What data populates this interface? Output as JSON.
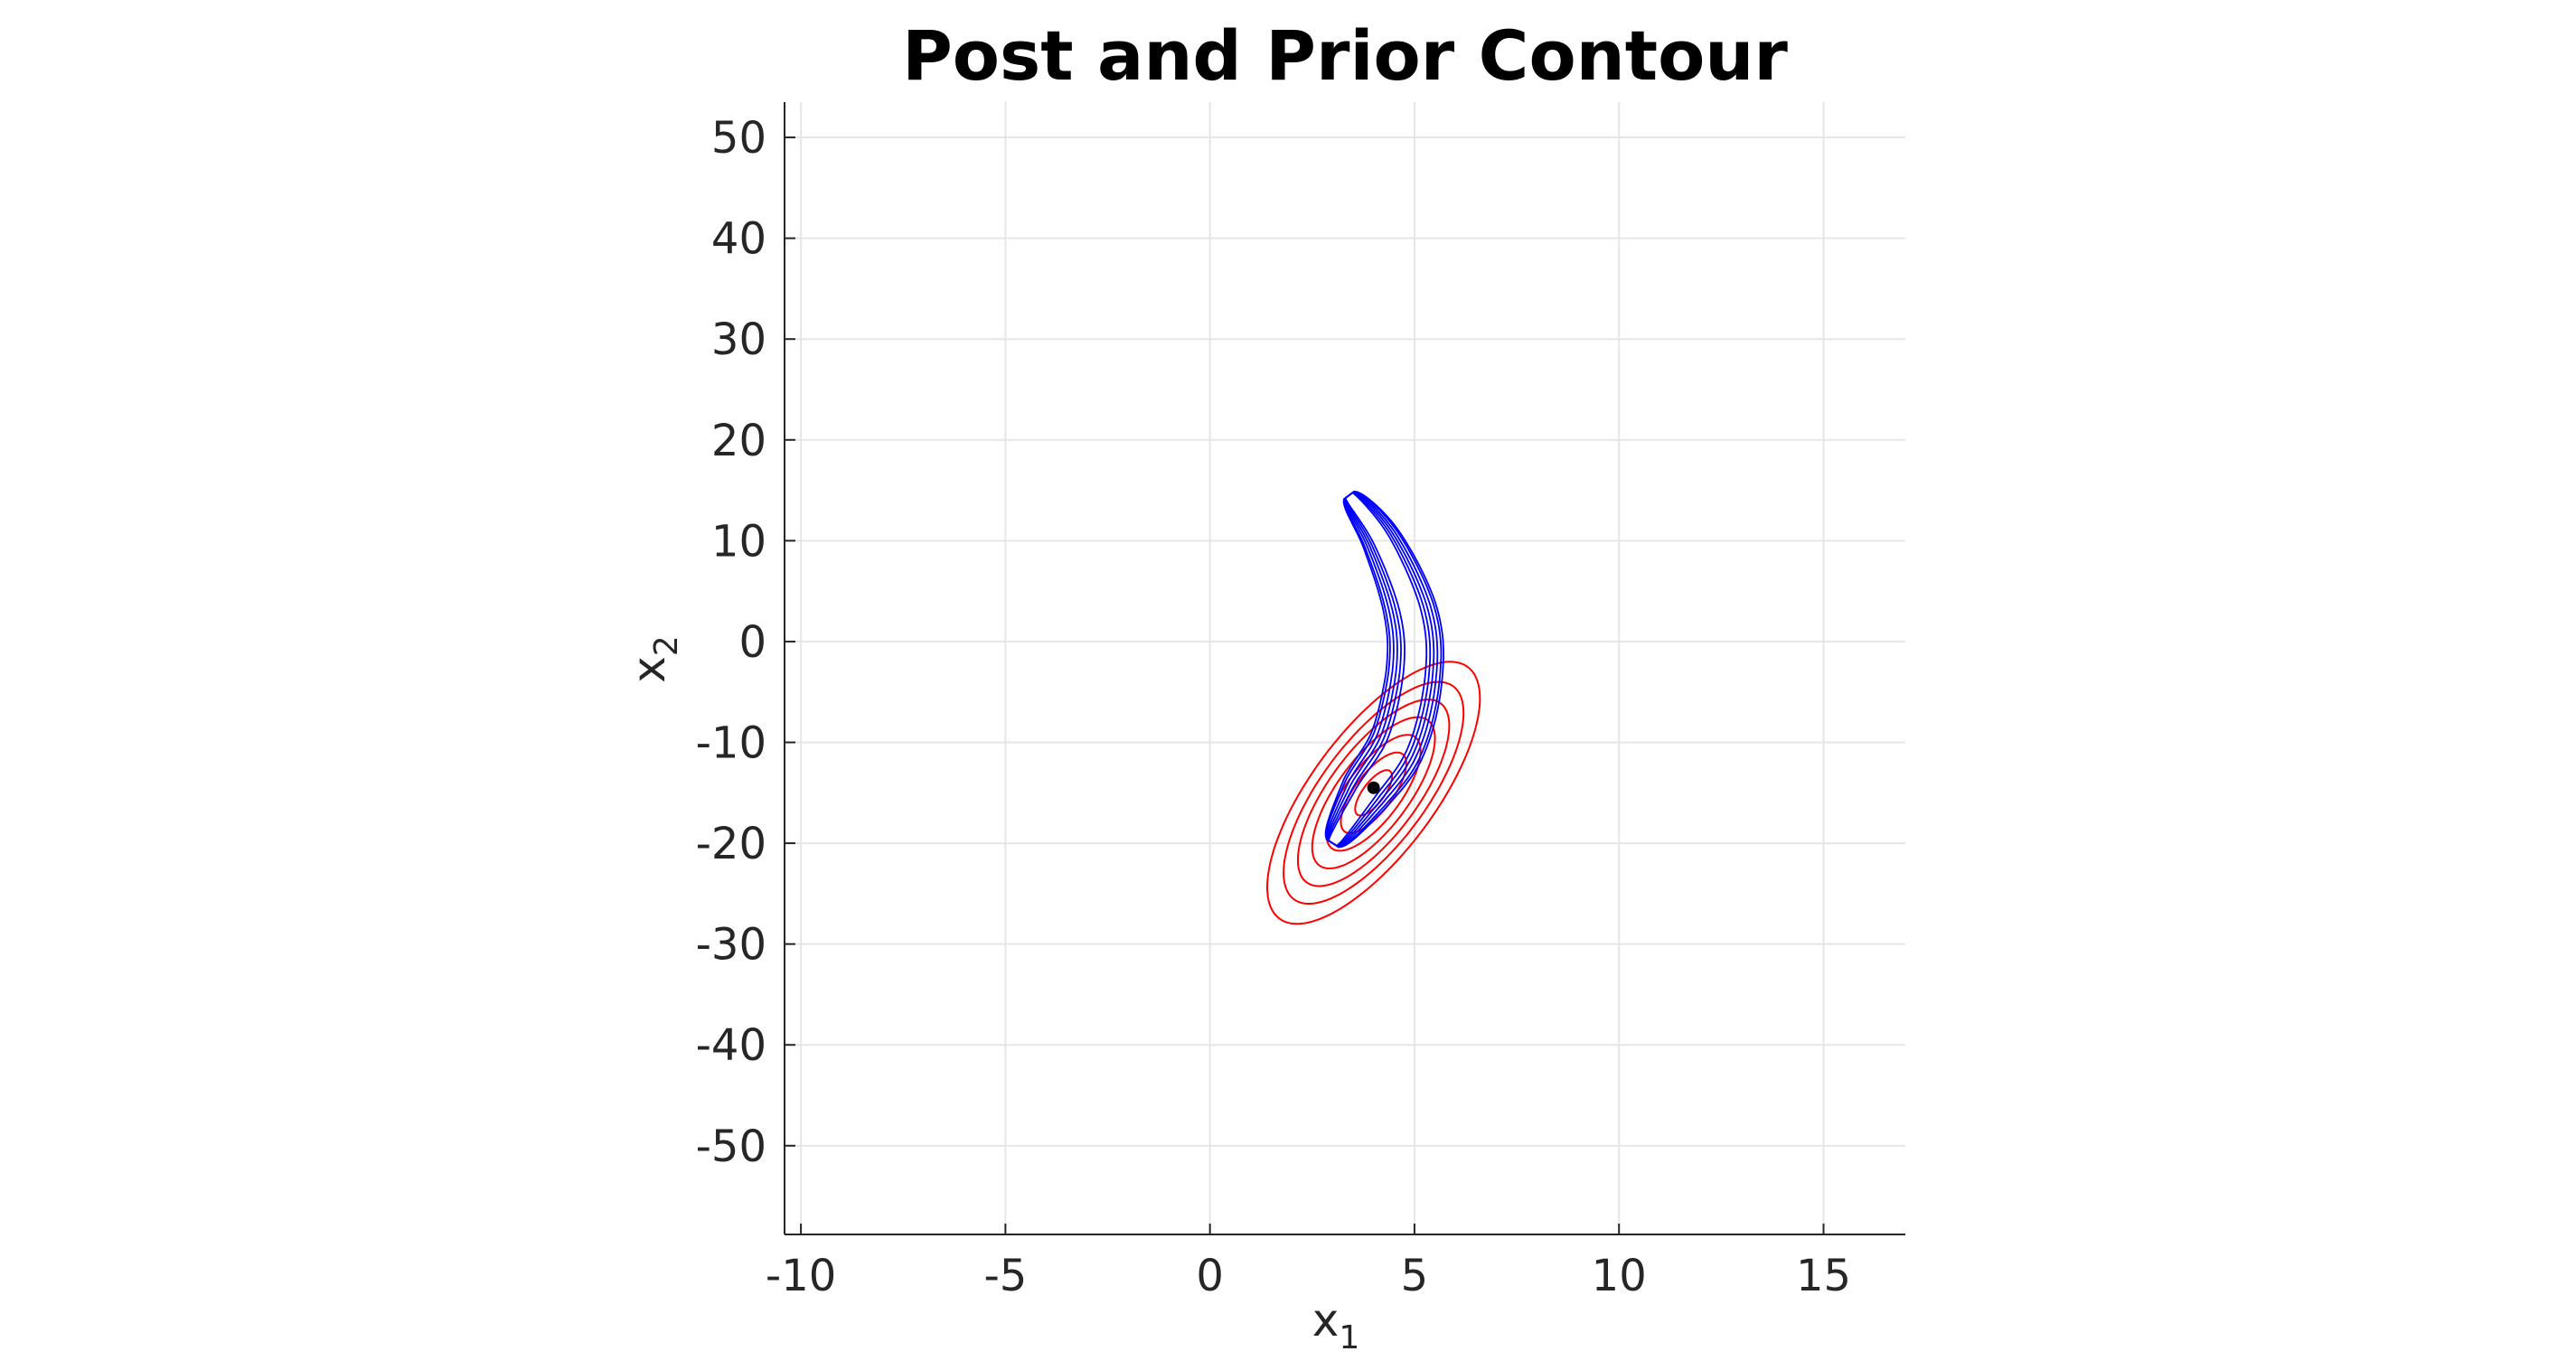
{
  "chart_data": {
    "type": "contour",
    "title": "Post and Prior Contour",
    "xlabel_base": "x",
    "xlabel_sub": "1",
    "ylabel_base": "x",
    "ylabel_sub": "2",
    "xlim": [
      -10.4,
      17
    ],
    "ylim": [
      -58.8,
      53.5
    ],
    "x_ticks": [
      -10,
      -5,
      0,
      5,
      10,
      15
    ],
    "x_tick_labels": [
      "-10",
      "-5",
      "0",
      "5",
      "10",
      "15"
    ],
    "y_ticks": [
      50,
      40,
      30,
      20,
      10,
      0,
      -10,
      -20,
      -30,
      -40,
      -50
    ],
    "y_tick_labels": [
      "50",
      "40",
      "30",
      "20",
      "10",
      "0",
      "-10",
      "-20",
      "-30",
      "-40",
      "-50"
    ],
    "grid": true,
    "colors": {
      "prior": "#ff0000",
      "posterior": "#0000ff",
      "point": "#000000"
    },
    "series": [
      {
        "role": "prior",
        "color": "#ff0000",
        "distribution": "gaussian",
        "mean": [
          4.0,
          -15.0
        ],
        "sigma": [
          1.0,
          5.0
        ],
        "rho": 0.72,
        "levels_mahalanobis": [
          0.45,
          0.8,
          1.15,
          1.5,
          1.85,
          2.2,
          2.6
        ]
      },
      {
        "role": "posterior",
        "color": "#0000ff",
        "distribution": "banana",
        "spine": [
          [
            3.4,
            14.5
          ],
          [
            4.2,
            10.0
          ],
          [
            4.9,
            3.0
          ],
          [
            5.0,
            -3.0
          ],
          [
            4.6,
            -10.0
          ],
          [
            3.8,
            -15.0
          ],
          [
            3.0,
            -20.0
          ]
        ],
        "half_widths": [
          0.5,
          0.55,
          0.6,
          0.6,
          0.65,
          0.75,
          0.65
        ],
        "levels_scale": [
          0.3,
          0.45,
          0.6,
          0.75,
          0.9,
          1.0
        ]
      }
    ],
    "marker": {
      "x": 4.0,
      "y": -14.5,
      "color": "#000000"
    }
  }
}
